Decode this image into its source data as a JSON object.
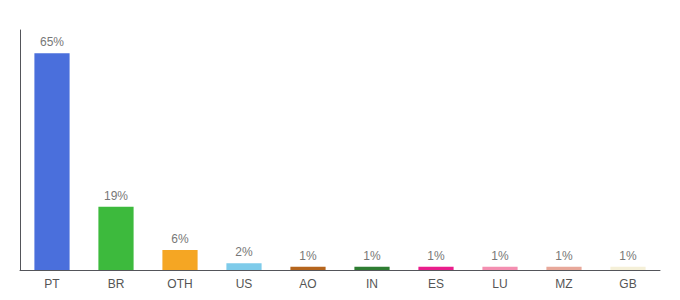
{
  "chart_data": {
    "type": "bar",
    "categories": [
      "PT",
      "BR",
      "OTH",
      "US",
      "AO",
      "IN",
      "ES",
      "LU",
      "MZ",
      "GB"
    ],
    "values": [
      65,
      19,
      6,
      2,
      1,
      1,
      1,
      1,
      1,
      1
    ],
    "value_labels": [
      "65%",
      "19%",
      "6%",
      "2%",
      "1%",
      "1%",
      "1%",
      "1%",
      "1%",
      "1%"
    ],
    "colors": [
      "#4a6fdc",
      "#3dba3d",
      "#f5a623",
      "#7ecbea",
      "#b5651d",
      "#2e7d32",
      "#e91e8c",
      "#f48fb1",
      "#e8a89a",
      "#f5f0d8"
    ],
    "ylim": [
      0,
      72
    ],
    "data_labels": true,
    "tick_labels": "x",
    "grid": false
  }
}
